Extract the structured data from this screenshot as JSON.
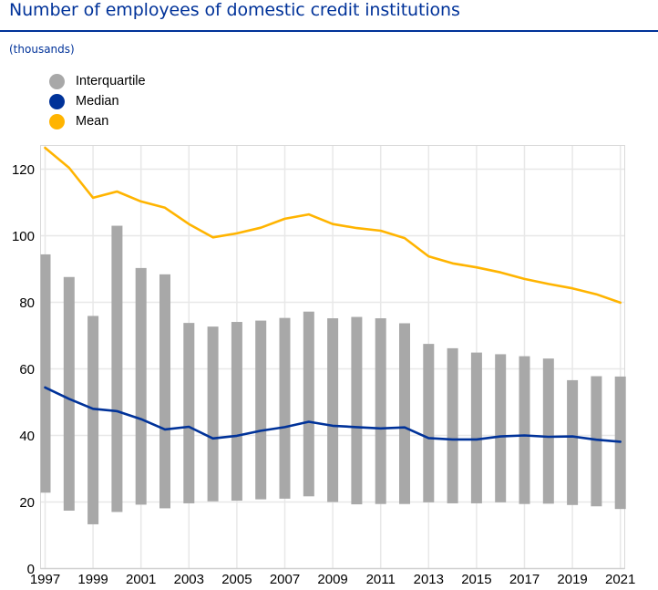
{
  "header": {
    "title": "Number of employees of domestic credit institutions",
    "subtitle": "(thousands)"
  },
  "colors": {
    "title": "#003299",
    "interquartile": "#a8a8a8",
    "median": "#003299",
    "mean": "#ffb400",
    "grid": "#e8e8e8"
  },
  "chart_data": {
    "type": "bar",
    "title": "Number of employees of domestic credit institutions",
    "subtitle": "(thousands)",
    "xlabel": "",
    "ylabel": "",
    "ylim": [
      0,
      127
    ],
    "yticks": [
      0,
      20,
      40,
      60,
      80,
      100,
      120
    ],
    "xticks": [
      "1997",
      "1999",
      "2001",
      "2003",
      "2005",
      "2007",
      "2009",
      "2011",
      "2013",
      "2015",
      "2017",
      "2019",
      "2021"
    ],
    "grid": true,
    "legend_position": "top-left",
    "legend": [
      "Interquartile",
      "Median",
      "Mean"
    ],
    "categories": [
      "1997",
      "1998",
      "1999",
      "2000",
      "2001",
      "2002",
      "2003",
      "2004",
      "2005",
      "2006",
      "2007",
      "2008",
      "2009",
      "2010",
      "2011",
      "2012",
      "2013",
      "2014",
      "2015",
      "2016",
      "2017",
      "2018",
      "2019",
      "2020",
      "2021"
    ],
    "series": [
      {
        "name": "Interquartile",
        "type": "floating-bar",
        "low": [
          22.8,
          17.4,
          13.3,
          17.0,
          19.2,
          18.1,
          19.6,
          20.2,
          20.4,
          20.8,
          21.0,
          21.7,
          20.0,
          19.3,
          19.4,
          19.4,
          19.9,
          19.6,
          19.6,
          19.9,
          19.4,
          19.5,
          19.1,
          18.7,
          17.9
        ],
        "high": [
          94.4,
          87.6,
          75.9,
          103.0,
          90.3,
          88.4,
          73.8,
          72.7,
          74.1,
          74.5,
          75.3,
          77.2,
          75.2,
          75.6,
          75.2,
          73.7,
          67.5,
          66.2,
          64.9,
          64.4,
          63.8,
          63.1,
          56.6,
          57.8,
          57.7
        ]
      },
      {
        "name": "Median",
        "type": "line",
        "values": [
          54.4,
          51.0,
          48.0,
          47.3,
          44.9,
          41.8,
          42.6,
          39.1,
          39.9,
          41.4,
          42.5,
          44.1,
          42.9,
          42.5,
          42.1,
          42.4,
          39.2,
          38.8,
          38.8,
          39.7,
          40.0,
          39.6,
          39.7,
          38.7,
          38.1
        ]
      },
      {
        "name": "Mean",
        "type": "line",
        "values": [
          126.4,
          120.4,
          111.4,
          113.3,
          110.3,
          108.4,
          103.5,
          99.5,
          100.7,
          102.4,
          105.1,
          106.4,
          103.5,
          102.3,
          101.5,
          99.3,
          93.8,
          91.7,
          90.5,
          89.0,
          87.0,
          85.5,
          84.2,
          82.4,
          79.9
        ]
      }
    ]
  }
}
